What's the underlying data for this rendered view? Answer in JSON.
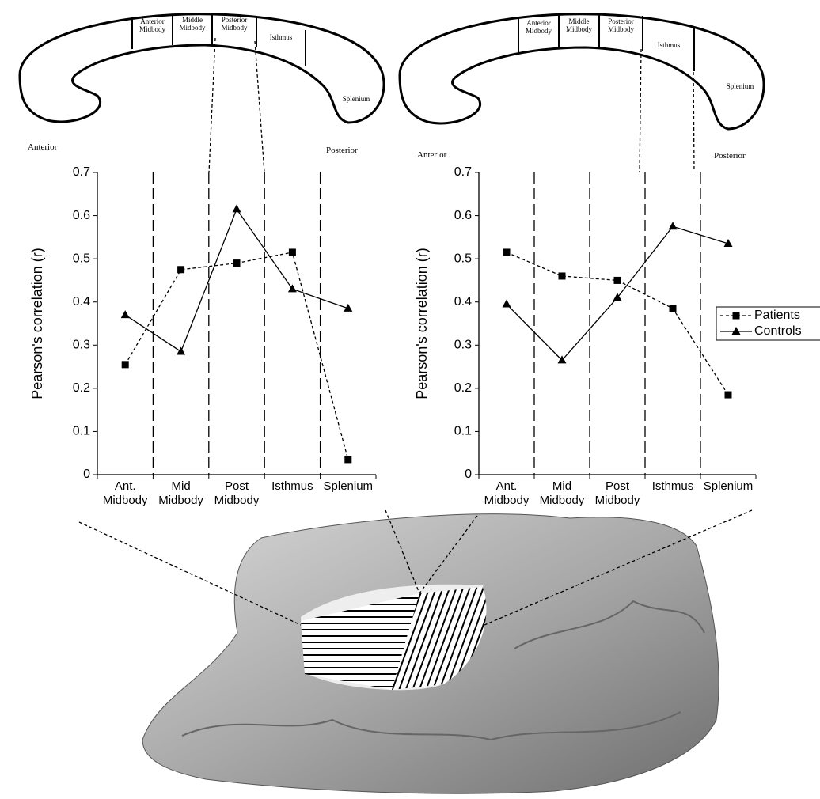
{
  "chart_data": [
    {
      "type": "line",
      "y_label": "Pearson's correlation (r)",
      "categories": [
        "Ant. Midbody",
        "Mid Midbody",
        "Post Midbody",
        "Isthmus",
        "Splenium"
      ],
      "ylim": [
        0,
        0.7
      ],
      "yticks": [
        0,
        0.1,
        0.2,
        0.3,
        0.4,
        0.5,
        0.6,
        0.7
      ],
      "series": [
        {
          "color": "#000000",
          "line_style": "dashed",
          "marker": "square",
          "values": [
            0.255,
            0.475,
            0.49,
            0.515,
            0.035
          ]
        },
        {
          "color": "#000000",
          "line_style": "solid",
          "marker": "triangle",
          "values": [
            0.37,
            0.285,
            0.615,
            0.43,
            0.385
          ]
        }
      ],
      "legend": false
    },
    {
      "type": "line",
      "y_label": "Pearson's correlation (r)",
      "categories": [
        "Ant. Midbody",
        "Mid Midbody",
        "Post Midbody",
        "Isthmus",
        "Splenium"
      ],
      "ylim": [
        0,
        0.7
      ],
      "yticks": [
        0,
        0.1,
        0.2,
        0.3,
        0.4,
        0.5,
        0.6,
        0.7
      ],
      "series": [
        {
          "name": "Patients",
          "color": "#000000",
          "line_style": "dashed",
          "marker": "square",
          "values": [
            0.515,
            0.46,
            0.45,
            0.385,
            0.185
          ]
        },
        {
          "name": "Controls",
          "color": "#000000",
          "line_style": "solid",
          "marker": "triangle",
          "values": [
            0.395,
            0.265,
            0.41,
            0.575,
            0.535
          ]
        }
      ],
      "legend": true,
      "legend_position": "right"
    }
  ],
  "diagrams": [
    {
      "regions": [
        "Anterior Midbody",
        "Middle Midbody",
        "Posterior Midbody",
        "Isthmus",
        "Splenium"
      ],
      "anterior": "Anterior",
      "posterior": "Posterior"
    },
    {
      "regions": [
        "Anterior Midbody",
        "Middle Midbody",
        "Posterior Midbody",
        "Isthmus",
        "Splenium"
      ],
      "anterior": "Anterior",
      "posterior": "Posterior"
    }
  ]
}
